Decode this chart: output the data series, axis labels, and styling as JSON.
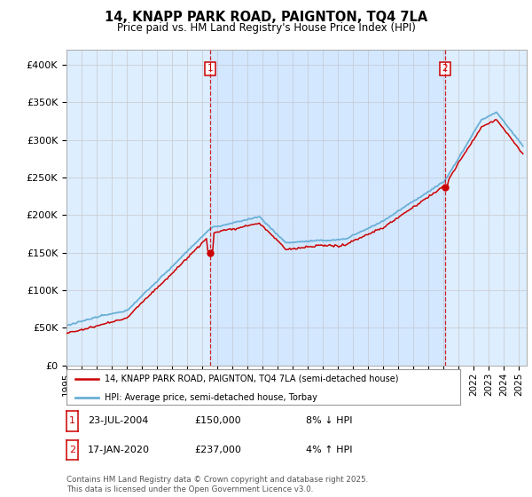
{
  "title": "14, KNAPP PARK ROAD, PAIGNTON, TQ4 7LA",
  "subtitle": "Price paid vs. HM Land Registry's House Price Index (HPI)",
  "ylim": [
    0,
    420000
  ],
  "yticks": [
    0,
    50000,
    100000,
    150000,
    200000,
    250000,
    300000,
    350000,
    400000
  ],
  "ytick_labels": [
    "£0",
    "£50K",
    "£100K",
    "£150K",
    "£200K",
    "£250K",
    "£300K",
    "£350K",
    "£400K"
  ],
  "hpi_color": "#6aafd6",
  "price_color": "#cc0000",
  "annotation_color": "#cc0000",
  "background_color": "#ffffff",
  "chart_bg_color": "#ddeeff",
  "grid_color": "#c8c8c8",
  "sale1_date": "23-JUL-2004",
  "sale1_price": 150000,
  "sale1_hpi": "8% ↓ HPI",
  "sale2_date": "17-JAN-2020",
  "sale2_price": 237000,
  "sale2_hpi": "4% ↑ HPI",
  "legend_line1": "14, KNAPP PARK ROAD, PAIGNTON, TQ4 7LA (semi-detached house)",
  "legend_line2": "HPI: Average price, semi-detached house, Torbay",
  "footer": "Contains HM Land Registry data © Crown copyright and database right 2025.\nThis data is licensed under the Open Government Licence v3.0.",
  "xtick_years": [
    1995,
    1996,
    1997,
    1998,
    1999,
    2000,
    2001,
    2002,
    2003,
    2004,
    2005,
    2006,
    2007,
    2008,
    2009,
    2010,
    2011,
    2012,
    2013,
    2014,
    2015,
    2016,
    2017,
    2018,
    2019,
    2020,
    2021,
    2022,
    2023,
    2024,
    2025
  ]
}
